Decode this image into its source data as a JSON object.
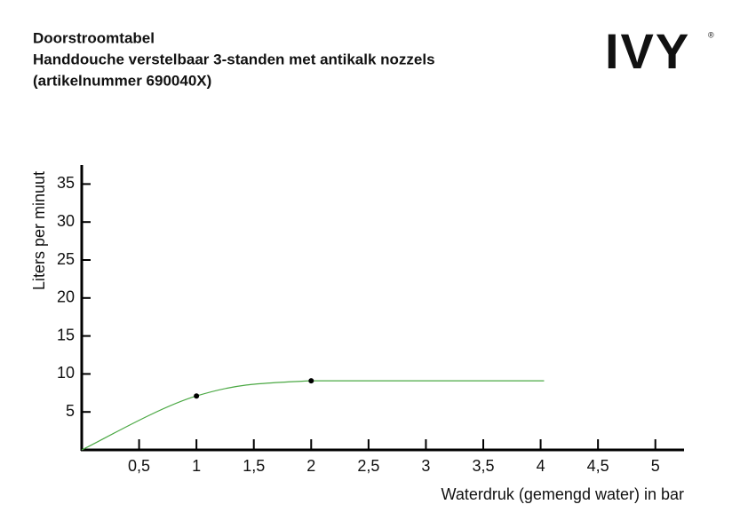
{
  "chart_data": {
    "type": "line",
    "title_lines": [
      "Doorstroomtabel",
      "Handdouche verstelbaar 3-standen met antikalk nozzels",
      "(artikelnummer 690040X)"
    ],
    "logo": "IVY",
    "logo_mark": "®",
    "x_label": "Waterdruk (gemengd water) in bar",
    "y_label": "Liters per minuut",
    "x": [
      0,
      1,
      2,
      4.03
    ],
    "series": [
      {
        "name": "Doorstroom",
        "color": "#4aa843",
        "values": [
          0,
          7.1,
          9.1,
          9.1
        ]
      }
    ],
    "marker_indices": [
      1,
      2
    ],
    "xlim": [
      0,
      5.25
    ],
    "xticks": [
      {
        "value": 0.5,
        "label": "0,5"
      },
      1,
      {
        "value": 1.5,
        "label": "1,5"
      },
      2,
      {
        "value": 2.5,
        "label": "2,5"
      },
      3,
      {
        "value": 3.5,
        "label": "3,5"
      },
      4,
      {
        "value": 4.5,
        "label": "4,5"
      },
      5
    ],
    "ylim": [
      0,
      37.5
    ],
    "yticks": [
      5,
      10,
      15,
      20,
      25,
      30,
      35
    ],
    "legend": false,
    "grid": false
  }
}
